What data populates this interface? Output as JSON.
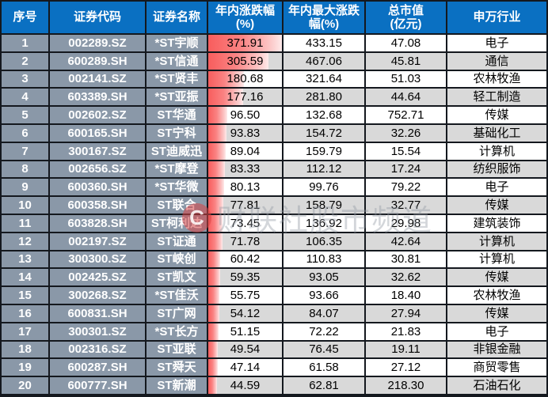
{
  "chart_data": {
    "type": "table",
    "columns": [
      {
        "key": "index",
        "label": "序号"
      },
      {
        "key": "code",
        "label": "证券代码"
      },
      {
        "key": "name",
        "label": "证券名称"
      },
      {
        "key": "ytd_change",
        "label": "年内涨跌幅\n(%)"
      },
      {
        "key": "max_change",
        "label": "年内最大涨跌\n幅(%)"
      },
      {
        "key": "market_cap",
        "label": "总市值\n(亿元)"
      },
      {
        "key": "industry",
        "label": "申万行业"
      }
    ],
    "databar": {
      "column": "ytd_change",
      "min": 0,
      "max": 371.91,
      "style": "red-gradient"
    },
    "rows": [
      {
        "index": "1",
        "code": "002289.SZ",
        "name": "*ST宇顺",
        "ytd_change": "371.91",
        "max_change": "433.15",
        "market_cap": "47.08",
        "industry": "电子"
      },
      {
        "index": "2",
        "code": "600289.SH",
        "name": "*ST信通",
        "ytd_change": "305.59",
        "max_change": "467.06",
        "market_cap": "45.81",
        "industry": "通信"
      },
      {
        "index": "3",
        "code": "002141.SZ",
        "name": "*ST贤丰",
        "ytd_change": "180.68",
        "max_change": "321.64",
        "market_cap": "51.03",
        "industry": "农林牧渔"
      },
      {
        "index": "4",
        "code": "603389.SH",
        "name": "*ST亚振",
        "ytd_change": "177.16",
        "max_change": "281.80",
        "market_cap": "44.64",
        "industry": "轻工制造"
      },
      {
        "index": "5",
        "code": "002602.SZ",
        "name": "ST华通",
        "ytd_change": "96.50",
        "max_change": "132.68",
        "market_cap": "752.71",
        "industry": "传媒"
      },
      {
        "index": "6",
        "code": "600165.SH",
        "name": "ST宁科",
        "ytd_change": "93.83",
        "max_change": "154.72",
        "market_cap": "32.26",
        "industry": "基础化工"
      },
      {
        "index": "7",
        "code": "300167.SZ",
        "name": "ST迪威迅",
        "ytd_change": "89.04",
        "max_change": "159.79",
        "market_cap": "15.54",
        "industry": "计算机"
      },
      {
        "index": "8",
        "code": "002656.SZ",
        "name": "*ST摩登",
        "ytd_change": "83.33",
        "max_change": "112.12",
        "market_cap": "17.24",
        "industry": "纺织服饰"
      },
      {
        "index": "9",
        "code": "600360.SH",
        "name": "*ST华微",
        "ytd_change": "80.13",
        "max_change": "99.76",
        "market_cap": "79.22",
        "industry": "电子"
      },
      {
        "index": "10",
        "code": "600358.SH",
        "name": "ST联合",
        "ytd_change": "77.81",
        "max_change": "158.79",
        "market_cap": "32.77",
        "industry": "传媒"
      },
      {
        "index": "11",
        "code": "603828.SH",
        "name": "ST柯利达",
        "ytd_change": "73.45",
        "max_change": "136.92",
        "market_cap": "29.98",
        "industry": "建筑装饰"
      },
      {
        "index": "12",
        "code": "002197.SZ",
        "name": "ST证通",
        "ytd_change": "71.78",
        "max_change": "106.35",
        "market_cap": "42.64",
        "industry": "计算机"
      },
      {
        "index": "13",
        "code": "300300.SZ",
        "name": "ST峡创",
        "ytd_change": "60.42",
        "max_change": "110.83",
        "market_cap": "30.81",
        "industry": "计算机"
      },
      {
        "index": "14",
        "code": "002425.SZ",
        "name": "ST凯文",
        "ytd_change": "59.35",
        "max_change": "93.05",
        "market_cap": "32.62",
        "industry": "传媒"
      },
      {
        "index": "15",
        "code": "300268.SZ",
        "name": "*ST佳沃",
        "ytd_change": "55.75",
        "max_change": "93.66",
        "market_cap": "18.40",
        "industry": "农林牧渔"
      },
      {
        "index": "16",
        "code": "600831.SH",
        "name": "ST广网",
        "ytd_change": "54.12",
        "max_change": "84.07",
        "market_cap": "27.94",
        "industry": "传媒"
      },
      {
        "index": "17",
        "code": "300301.SZ",
        "name": "*ST长方",
        "ytd_change": "51.15",
        "max_change": "72.22",
        "market_cap": "21.83",
        "industry": "电子"
      },
      {
        "index": "18",
        "code": "002316.SZ",
        "name": "ST亚联",
        "ytd_change": "49.54",
        "max_change": "76.45",
        "market_cap": "19.11",
        "industry": "非银金融"
      },
      {
        "index": "19",
        "code": "600287.SH",
        "name": "ST舜天",
        "ytd_change": "47.14",
        "max_change": "61.58",
        "market_cap": "27.12",
        "industry": "商贸零售"
      },
      {
        "index": "20",
        "code": "600777.SH",
        "name": "ST新潮",
        "ytd_change": "44.59",
        "max_change": "62.81",
        "market_cap": "218.30",
        "industry": "石油石化"
      }
    ]
  },
  "watermark": {
    "logo_letter": "C",
    "text": "财联社股市频道"
  },
  "colors": {
    "header_bg": "#0a70c2",
    "header_text": "#ffffff",
    "left_cell_bg": "#8a98a8",
    "left_cell_text": "#ffffff",
    "row_odd_bg": "#ffffff",
    "row_even_bg": "#d9d9d9",
    "border": "#14181e",
    "databar_start": "#f85d5d",
    "databar_end": "#feeaea"
  }
}
